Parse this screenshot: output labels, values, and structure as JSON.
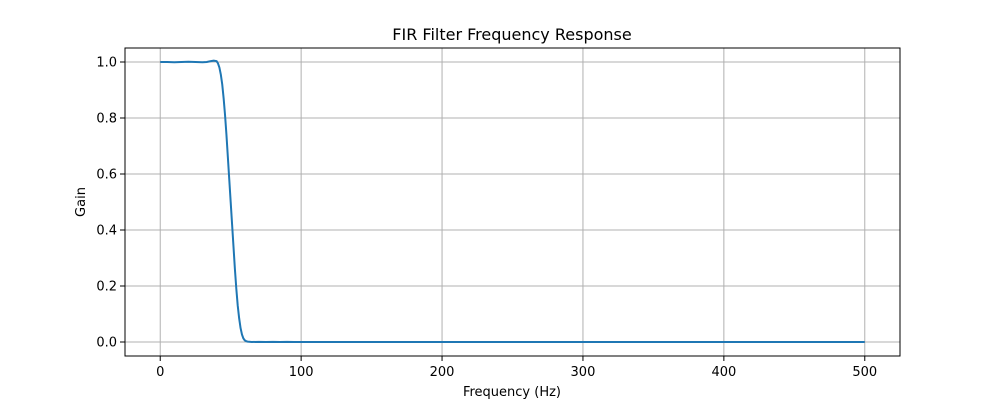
{
  "chart_data": {
    "type": "line",
    "title": "FIR Filter Frequency Response",
    "xlabel": "Frequency (Hz)",
    "ylabel": "Gain",
    "xlim": [
      -25,
      525
    ],
    "ylim": [
      -0.05,
      1.05
    ],
    "xticks": [
      0,
      100,
      200,
      300,
      400,
      500
    ],
    "yticks": [
      0.0,
      0.2,
      0.4,
      0.6,
      0.8,
      1.0
    ],
    "xtick_labels": [
      "0",
      "100",
      "200",
      "300",
      "400",
      "500"
    ],
    "ytick_labels": [
      "0.0",
      "0.2",
      "0.4",
      "0.6",
      "0.8",
      "1.0"
    ],
    "grid": true,
    "line_color": "#1f77b4",
    "series": [
      {
        "x": [
          0,
          5,
          10,
          15,
          20,
          25,
          30,
          33,
          36,
          38,
          40,
          41,
          42,
          43,
          44,
          45,
          46,
          47,
          48,
          49,
          50,
          51,
          52,
          53,
          54,
          55,
          56,
          57,
          58,
          59,
          60,
          61,
          62,
          63,
          65,
          70,
          75,
          80,
          85,
          90,
          95,
          100,
          150,
          200,
          300,
          400,
          500
        ],
        "y": [
          1.0,
          1.0,
          0.999,
          1.0,
          1.001,
          1.0,
          0.999,
          1.0,
          1.003,
          1.005,
          1.003,
          0.995,
          0.98,
          0.955,
          0.92,
          0.87,
          0.81,
          0.74,
          0.66,
          0.58,
          0.5,
          0.42,
          0.34,
          0.26,
          0.19,
          0.13,
          0.085,
          0.05,
          0.027,
          0.013,
          0.006,
          0.003,
          0.0015,
          0.001,
          0.0,
          0.0005,
          0.0,
          0.0005,
          0.0,
          0.0004,
          0.0,
          0.0,
          0.0,
          0.0,
          0.0,
          0.0,
          0.0
        ]
      }
    ]
  }
}
